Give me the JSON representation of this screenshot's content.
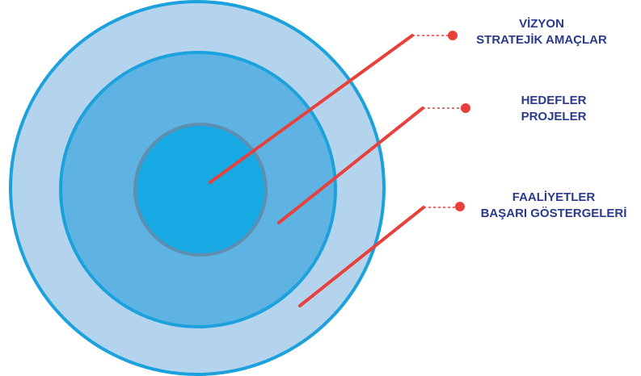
{
  "colors": {
    "outer_fill": "#b4d4ee",
    "outer_stroke": "#1ba1dc",
    "middle_fill": "#5fb3e3",
    "middle_stroke": "#1ba1dc",
    "inner_fill": "#16a9e3",
    "inner_stroke": "#5e8fb0",
    "pointer": "#e8413c",
    "label_text": "#2b3a8c"
  },
  "layers": [
    {
      "line1": "VİZYON",
      "line2": "STRATEJİK AMAÇLAR"
    },
    {
      "line1": "HEDEFLER",
      "line2": "PROJELER"
    },
    {
      "line1": "FAALİYETLER",
      "line2": "BAŞARI GÖSTERGELERİ"
    }
  ]
}
